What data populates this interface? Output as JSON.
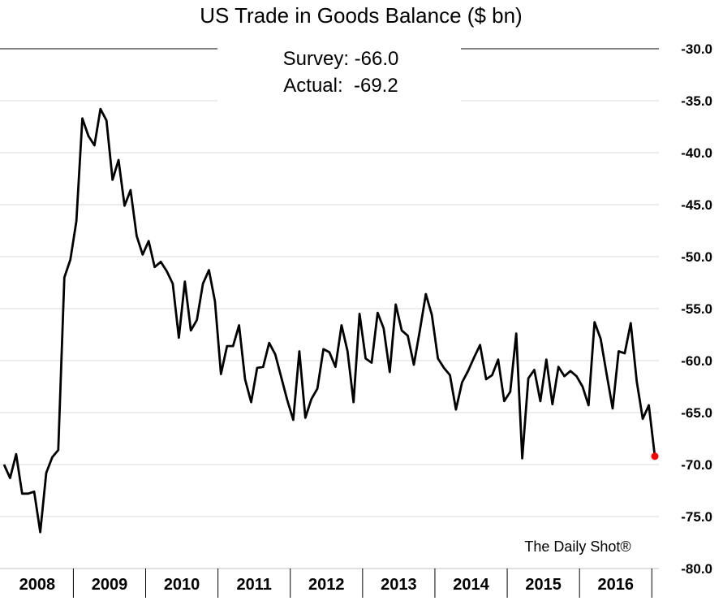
{
  "chart_data": {
    "type": "line",
    "title": "US Trade in Goods Balance ($ bn)",
    "annotation": {
      "survey": "Survey: -66.0",
      "actual": "Actual:  -69.2"
    },
    "source": "The Daily Shot®",
    "ylim": [
      -80,
      -30
    ],
    "y_ticks": [
      "-30.0",
      "-35.0",
      "-40.0",
      "-45.0",
      "-50.0",
      "-55.0",
      "-60.0",
      "-65.0",
      "-70.0",
      "-75.0",
      "-80.0"
    ],
    "y_tick_values": [
      -30,
      -35,
      -40,
      -45,
      -50,
      -55,
      -60,
      -65,
      -70,
      -75,
      -80
    ],
    "years": [
      "2008",
      "2009",
      "2010",
      "2011",
      "2012",
      "2013",
      "2014",
      "2015",
      "2016"
    ],
    "grid": true,
    "series": [
      {
        "values": [
          -70.0,
          -71.3,
          -69.0,
          -72.8,
          -72.8,
          -72.6,
          -76.5,
          -70.8,
          -69.3,
          -68.6,
          -52.0,
          -50.3,
          -46.6,
          -36.7,
          -38.4,
          -39.3,
          -35.8,
          -36.9,
          -42.6,
          -40.7,
          -45.1,
          -43.6,
          -48.0,
          -49.8,
          -48.5,
          -51.0,
          -50.5,
          -51.4,
          -52.6,
          -57.8,
          -52.4,
          -57.1,
          -56.1,
          -52.6,
          -51.3,
          -54.3,
          -61.3,
          -58.6,
          -58.6,
          -56.6,
          -61.8,
          -64.0,
          -60.7,
          -60.6,
          -58.3,
          -59.4,
          -61.6,
          -63.8,
          -65.7,
          -59.1,
          -65.5,
          -63.7,
          -62.7,
          -58.9,
          -59.2,
          -60.6,
          -56.6,
          -59.1,
          -64.0,
          -55.5,
          -59.8,
          -60.2,
          -55.4,
          -56.9,
          -61.1,
          -54.6,
          -57.1,
          -57.6,
          -60.4,
          -57.1,
          -53.6,
          -55.6,
          -59.8,
          -60.7,
          -61.4,
          -64.7,
          -62.1,
          -61.0,
          -59.7,
          -58.5,
          -61.8,
          -61.4,
          -59.9,
          -63.9,
          -63.0,
          -57.4,
          -69.4,
          -61.7,
          -60.9,
          -63.9,
          -59.9,
          -64.2,
          -60.6,
          -61.5,
          -61.0,
          -61.5,
          -62.5,
          -64.3,
          -56.3,
          -57.9,
          -61.3,
          -64.6,
          -59.1,
          -59.3,
          -56.4,
          -62.0,
          -65.6,
          -64.3,
          -69.2
        ]
      }
    ]
  }
}
